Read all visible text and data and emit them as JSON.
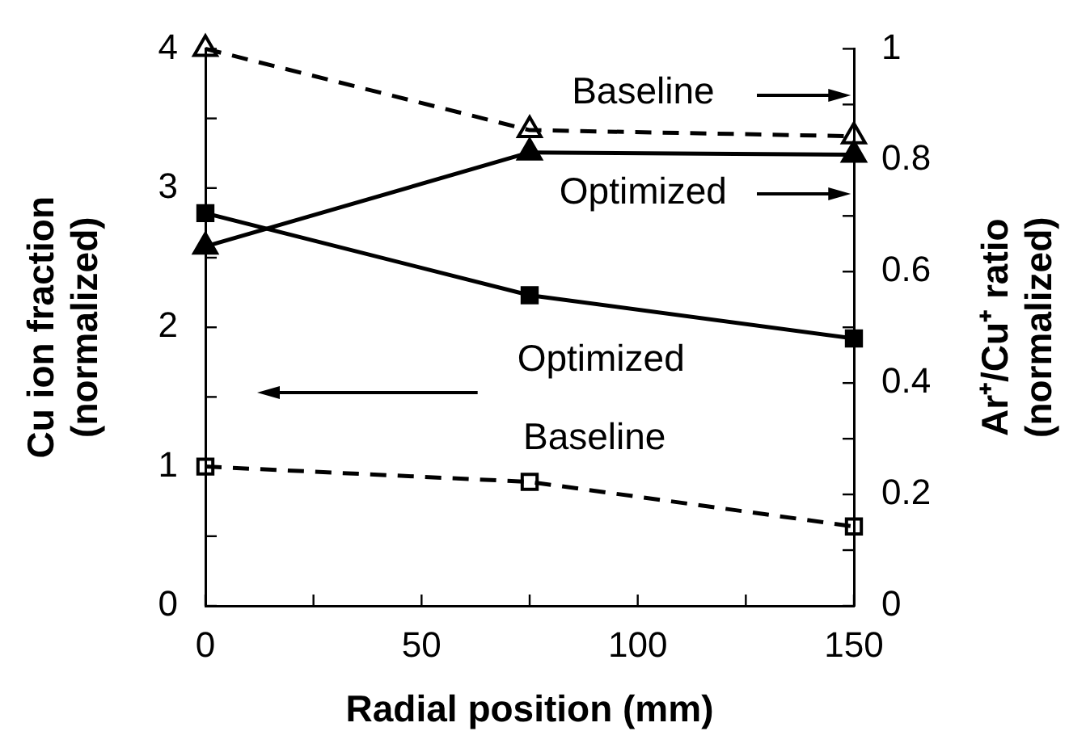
{
  "chart_data": {
    "type": "line",
    "xlabel": "Radial position (mm)",
    "ylabel": "Cu ion fraction\n(normalized)",
    "y2label": "Ar⁺/Cu⁺ ratio\n(normalized)",
    "x": [
      0,
      75,
      150
    ],
    "xlim": [
      0,
      150
    ],
    "xticks": [
      0,
      {
        "value": 25,
        "label": null
      },
      50,
      {
        "value": 75,
        "label": null
      },
      100,
      {
        "value": 125,
        "label": null
      },
      150
    ],
    "ylim": [
      0,
      4
    ],
    "yticks": [
      0,
      {
        "value": 0.5,
        "label": null
      },
      1,
      {
        "value": 1.5,
        "label": null
      },
      2,
      {
        "value": 2.5,
        "label": null
      },
      3,
      {
        "value": 3.5,
        "label": null
      },
      4
    ],
    "y2lim": [
      0,
      1
    ],
    "y2ticks": [
      0,
      {
        "value": 0.1,
        "label": null
      },
      0.2,
      {
        "value": 0.3,
        "label": null
      },
      0.4,
      {
        "value": 0.5,
        "label": null
      },
      0.6,
      {
        "value": 0.7,
        "label": null
      },
      0.8,
      {
        "value": 0.9,
        "label": null
      },
      1
    ],
    "grid": false,
    "series": [
      {
        "color": "#000000",
        "marker": "square",
        "line_style": "solid",
        "values": [
          2.82,
          2.23,
          1.92
        ]
      },
      {
        "color": "#000000",
        "marker": "square",
        "line_style": "dashed",
        "values": [
          1.0,
          0.89,
          0.57
        ]
      },
      {
        "color": "#000000",
        "marker": "triangle",
        "line_style": "dashed",
        "axis": "y2",
        "values": [
          1.0,
          0.854,
          0.843
        ]
      },
      {
        "color": "#000000",
        "marker": "triangle",
        "line_style": "solid",
        "axis": "y2",
        "values": [
          0.645,
          0.814,
          0.81
        ]
      }
    ],
    "annotations": [
      "Baseline",
      "Optimized",
      "Optimized",
      "Baseline"
    ]
  }
}
